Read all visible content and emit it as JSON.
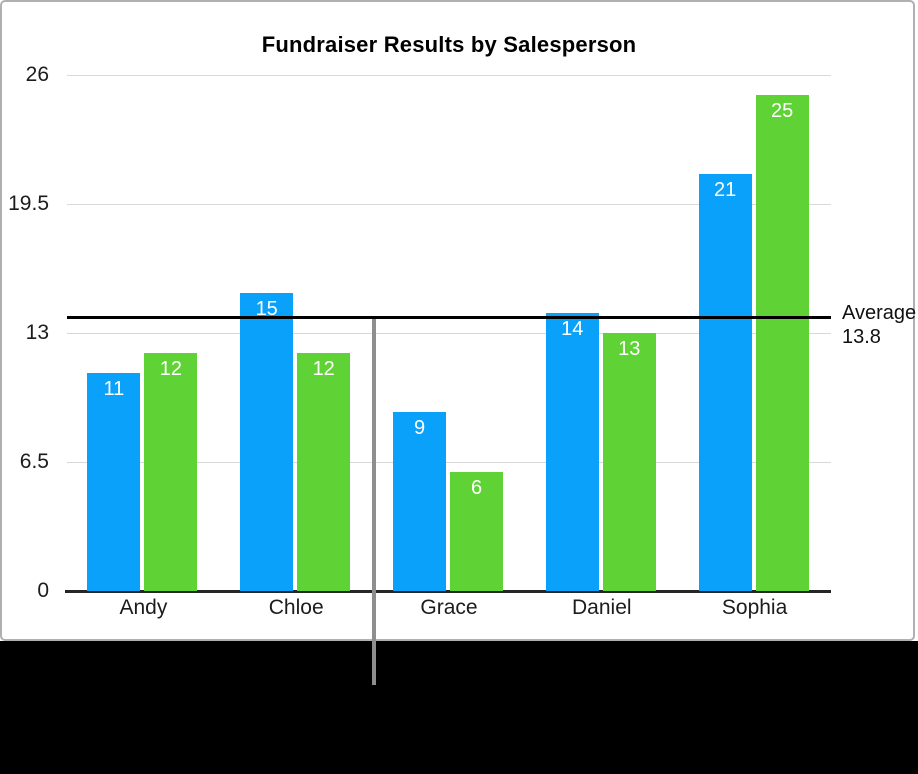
{
  "chart_data": {
    "type": "bar",
    "title": "Fundraiser Results by Salesperson",
    "categories": [
      "Andy",
      "Chloe",
      "Grace",
      "Daniel",
      "Sophia"
    ],
    "series": [
      {
        "name": "blue-series",
        "color": "#0aa1fb",
        "values": [
          11,
          15,
          9,
          14,
          21
        ]
      },
      {
        "name": "green-series",
        "color": "#5fd335",
        "values": [
          12,
          12,
          6,
          13,
          25
        ]
      }
    ],
    "value_labels_shown": true,
    "y_ticks": [
      26,
      19.5,
      13,
      6.5,
      0
    ],
    "ylim": [
      0,
      26
    ],
    "grid": true,
    "legend_position": "none",
    "reference_line": {
      "value": 13.8,
      "label_lines": [
        "Average",
        "13.8"
      ]
    }
  },
  "annotations": {
    "vertical_pointer_line": {
      "description": "gray pointer line below average line extending into black panel"
    }
  },
  "colors": {
    "bar_blue": "#0aa1fb",
    "bar_green": "#5fd335",
    "gridline": "#d8d8d8",
    "axis_line": "#262626",
    "reference_line": "#000000",
    "pointer_line": "#8e8e8e",
    "card_border": "#b0b0b0",
    "bottom_panel": "#000000",
    "label_text": "#1c1c1c",
    "value_label_text": "#ffffff"
  }
}
